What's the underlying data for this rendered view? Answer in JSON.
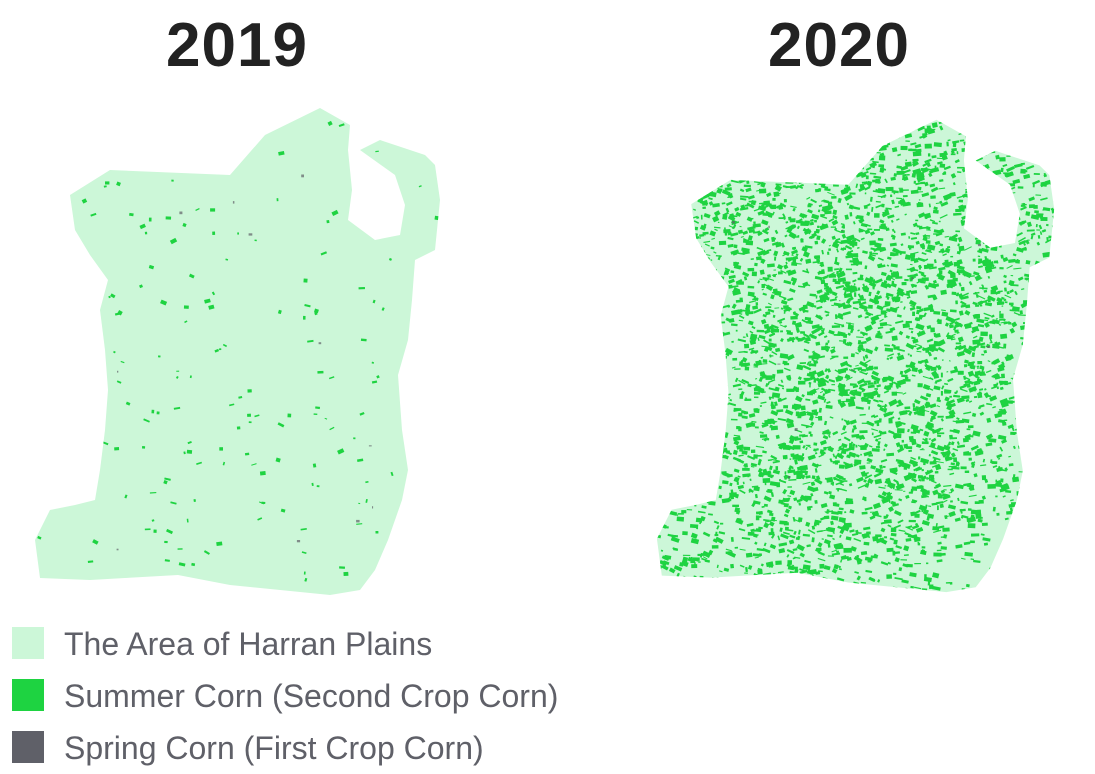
{
  "maps": [
    {
      "year": "2019",
      "summer_corn_density": "sparse"
    },
    {
      "year": "2020",
      "summer_corn_density": "dense"
    }
  ],
  "legend": [
    {
      "label": "The Area of Harran Plains",
      "color": "#ccf7d8",
      "icon": "light-green-square-icon"
    },
    {
      "label": "Summer Corn (Second Crop Corn)",
      "color": "#1ed341",
      "icon": "green-square-icon"
    },
    {
      "label": "Spring Corn (First Crop Corn)",
      "color": "#5f6068",
      "icon": "gray-square-icon"
    }
  ]
}
